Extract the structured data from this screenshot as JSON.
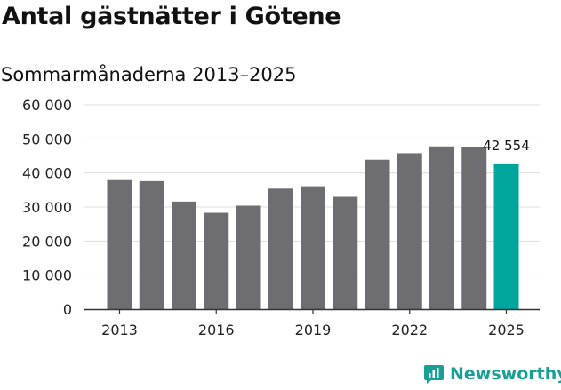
{
  "header": {
    "title": "Antal gästnätter i Götene",
    "subtitle": "Sommarmånaderna 2013–2025"
  },
  "brand": {
    "name": "Newsworthy",
    "icon": "newsworthy-logo-icon",
    "color": "#18a096"
  },
  "chart_data": {
    "type": "bar",
    "title": "Antal gästnätter i Götene",
    "subtitle": "Sommarmånaderna 2013–2025",
    "categories": [
      "2013",
      "2014",
      "2015",
      "2016",
      "2017",
      "2018",
      "2019",
      "2020",
      "2021",
      "2022",
      "2023",
      "2024",
      "2025"
    ],
    "values": [
      37900,
      37600,
      31600,
      28300,
      30400,
      35400,
      36100,
      33000,
      43900,
      45800,
      47800,
      47700,
      42554
    ],
    "x_tick_labels": [
      "2013",
      "2016",
      "2019",
      "2022",
      "2025"
    ],
    "y_ticks": [
      0,
      10000,
      20000,
      30000,
      40000,
      50000,
      60000
    ],
    "y_tick_labels": [
      "0",
      "10 000",
      "20 000",
      "30 000",
      "40 000",
      "50 000",
      "60 000"
    ],
    "ylim": [
      0,
      60000
    ],
    "grid": true,
    "bar_color": "#6e6d71",
    "highlight_color": "#00a69c",
    "highlight_index": 12,
    "annotation": "42 554"
  }
}
